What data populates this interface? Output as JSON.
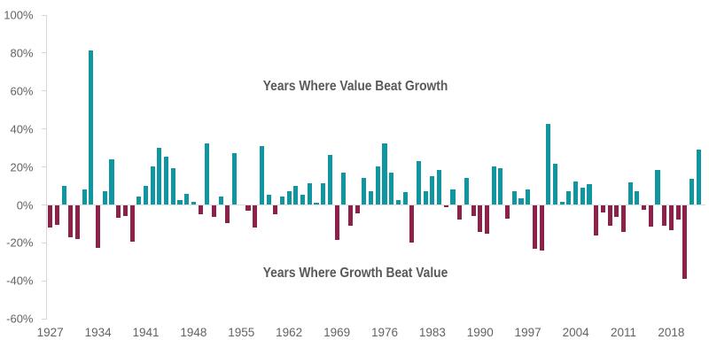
{
  "chart_data": {
    "type": "bar",
    "title": "",
    "xlabel": "",
    "ylabel": "",
    "x": [
      1927,
      1928,
      1929,
      1930,
      1931,
      1932,
      1933,
      1934,
      1935,
      1936,
      1937,
      1938,
      1939,
      1940,
      1941,
      1942,
      1943,
      1944,
      1945,
      1946,
      1947,
      1948,
      1949,
      1950,
      1951,
      1952,
      1953,
      1954,
      1955,
      1956,
      1957,
      1958,
      1959,
      1960,
      1961,
      1962,
      1963,
      1964,
      1965,
      1966,
      1967,
      1968,
      1969,
      1970,
      1971,
      1972,
      1973,
      1974,
      1975,
      1976,
      1977,
      1978,
      1979,
      1980,
      1981,
      1982,
      1983,
      1984,
      1985,
      1986,
      1987,
      1988,
      1989,
      1990,
      1991,
      1992,
      1993,
      1994,
      1995,
      1996,
      1997,
      1998,
      1999,
      2000,
      2001,
      2002,
      2003,
      2004,
      2005,
      2006,
      2007,
      2008,
      2009,
      2010,
      2011,
      2012,
      2013,
      2014,
      2015,
      2016,
      2017,
      2018,
      2019,
      2020,
      2021,
      2022
    ],
    "values": [
      -11.5,
      -10.4,
      10,
      -16.6,
      -17.8,
      8,
      81,
      -22.5,
      7,
      24,
      -6.4,
      -5.4,
      -19.1,
      4,
      10,
      20,
      30,
      25,
      19,
      2.1,
      5.8,
      1.2,
      -4.7,
      32,
      -6,
      4.1,
      -9.1,
      27,
      0,
      -3,
      -11.5,
      31,
      5,
      -4.7,
      4,
      7,
      9.8,
      5.2,
      11,
      1,
      11,
      26,
      -18,
      17,
      -10.7,
      -4,
      14,
      7,
      20,
      32,
      17,
      2.2,
      6.5,
      -19.5,
      23,
      6.8,
      14.8,
      18,
      -1,
      7.9,
      -7.3,
      13.8,
      -5.6,
      -13.8,
      -15,
      20,
      19,
      -6.9,
      7,
      3.2,
      8,
      -23,
      -23.6,
      42.2,
      21.5,
      1.3,
      6.9,
      11.9,
      8.8,
      10.8,
      -16,
      -3.9,
      -10.7,
      -6.1,
      -14.1,
      11.8,
      6.8,
      -2.5,
      -11.3,
      18.2,
      -10.6,
      -13.2,
      -7.4,
      -38.7,
      13.3,
      28.7
    ],
    "ylim": [
      -60,
      100
    ],
    "y_tick_labels": [
      "100%",
      "80%",
      "60%",
      "40%",
      "20%",
      "0%",
      "-20%",
      "-40%",
      "-60%"
    ],
    "y_tick_values": [
      100,
      80,
      60,
      40,
      20,
      0,
      -20,
      -40,
      -60
    ],
    "x_tick_years": [
      1927,
      1934,
      1941,
      1948,
      1955,
      1962,
      1969,
      1976,
      1983,
      1990,
      1997,
      2004,
      2011,
      2018
    ],
    "grid": "zero baseline only, left axis with outward ticks",
    "legend": "none",
    "colors": {
      "positive_bar": "#0f96a0",
      "negative_bar": "#8c2249",
      "axis_line": "#d6d6d6",
      "label_text": "#595959"
    },
    "annotations": [
      {
        "text": "Years Where Value Beat Growth",
        "position": "upper center of plot"
      },
      {
        "text": "Years Where Growth Beat Value",
        "position": "lower center of plot"
      }
    ]
  }
}
